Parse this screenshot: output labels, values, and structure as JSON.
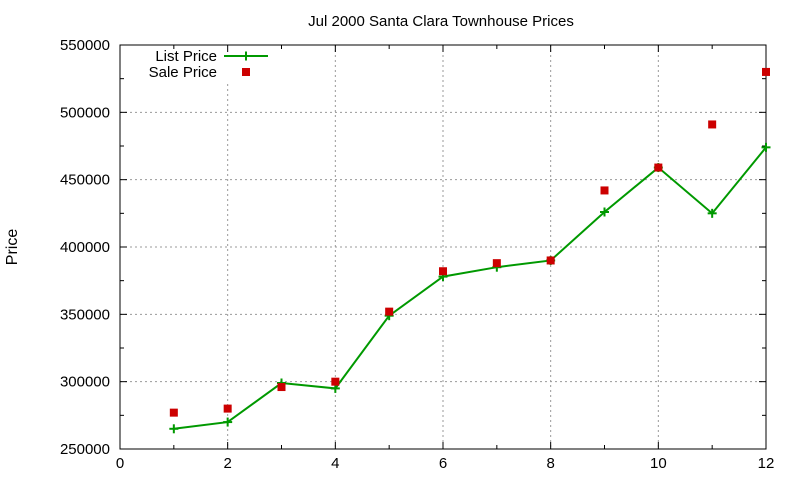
{
  "chart_data": {
    "type": "line",
    "title": "Jul 2000 Santa Clara Townhouse Prices",
    "xlabel": "",
    "ylabel": "Price",
    "xlim": [
      0,
      12
    ],
    "ylim": [
      250000,
      550000
    ],
    "x_ticks": [
      0,
      2,
      4,
      6,
      8,
      10,
      12
    ],
    "y_ticks": [
      250000,
      300000,
      350000,
      400000,
      450000,
      500000,
      550000
    ],
    "grid": true,
    "legend_position": "top-left",
    "series": [
      {
        "name": "List Price",
        "style": "linespoints",
        "marker": "plus",
        "color": "#009900",
        "x": [
          1,
          2,
          3,
          4,
          5,
          6,
          7,
          8,
          9,
          10,
          11,
          12
        ],
        "y": [
          265000,
          270000,
          299000,
          295000,
          349000,
          378000,
          385000,
          390000,
          426000,
          459000,
          425000,
          474000
        ]
      },
      {
        "name": "Sale Price",
        "style": "points",
        "marker": "square",
        "color": "#cc0000",
        "x": [
          1,
          2,
          3,
          4,
          5,
          6,
          7,
          8,
          9,
          10,
          11,
          12
        ],
        "y": [
          277000,
          280000,
          296000,
          300000,
          352000,
          382000,
          388000,
          390000,
          442000,
          459000,
          491000,
          530000
        ]
      }
    ]
  }
}
